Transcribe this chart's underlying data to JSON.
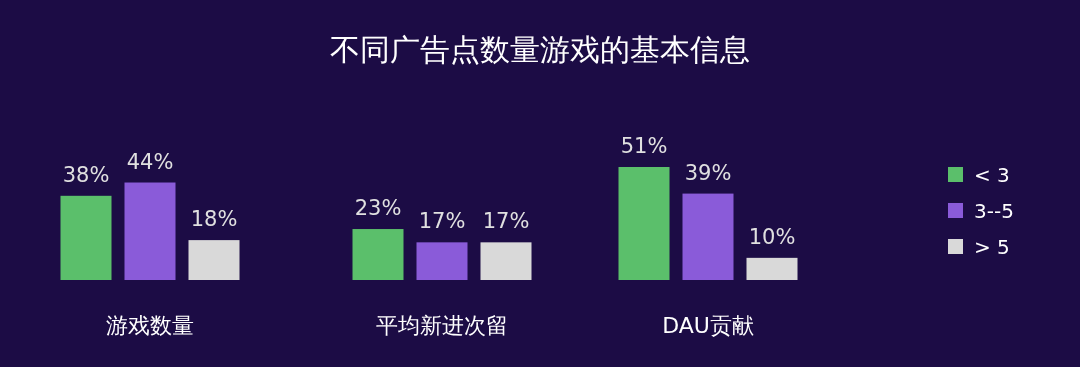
{
  "chart_data": {
    "type": "bar",
    "title": "不同广告点数量游戏的基本信息",
    "categories": [
      "游戏数量",
      "平均新进次留",
      "DAU贡献"
    ],
    "series": [
      {
        "name": "< 3",
        "color": "#5bbf6b",
        "values": [
          38,
          23,
          51
        ],
        "value_labels": [
          "38%",
          "23%",
          "51%"
        ]
      },
      {
        "name": "3--5",
        "color": "#8a5bd9",
        "values": [
          44,
          17,
          39
        ],
        "value_labels": [
          "44%",
          "17%",
          "39%"
        ]
      },
      {
        "name": "> 5",
        "color": "#d9d9d9",
        "values": [
          18,
          17,
          10
        ],
        "value_labels": [
          "18%",
          "17%",
          "10%"
        ]
      }
    ],
    "legend": "right",
    "grid": false
  }
}
